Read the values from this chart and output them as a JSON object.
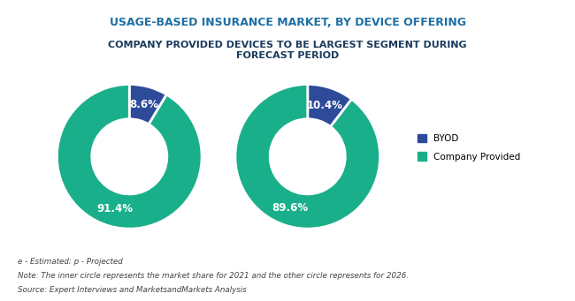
{
  "title1": "USAGE-BASED INSURANCE MARKET, BY DEVICE OFFERING",
  "title2": "COMPANY PROVIDED DEVICES TO BE LARGEST SEGMENT DURING\nFORECAST PERIOD",
  "title1_color": "#1F6FA3",
  "title2_color": "#1A3A5C",
  "donut1": {
    "values": [
      8.6,
      91.4
    ],
    "labels": [
      "8.6%",
      "91.4%"
    ],
    "colors": [
      "#2E4B9A",
      "#1AAF8B"
    ],
    "startangle": 90
  },
  "donut2": {
    "values": [
      10.4,
      89.6
    ],
    "labels": [
      "10.4%",
      "89.6%"
    ],
    "colors": [
      "#2E4B9A",
      "#1AAF8B"
    ],
    "startangle": 90
  },
  "legend_labels": [
    "BYOD",
    "Company Provided"
  ],
  "legend_colors": [
    "#2E4B9A",
    "#1AAF8B"
  ],
  "footer_line_color": "#C8A84B",
  "note1": "e - Estimated; p - Projected",
  "note2": "Note: The inner circle represents the market share for 2021 and the other circle represents for 2026.",
  "note3": "Source: Expert Interviews and MarketsandMarkets Analysis",
  "bg_color": "#FFFFFF",
  "label_color": "#FFFFFF",
  "label_fontsize": 8.5,
  "donut_width": 0.48
}
